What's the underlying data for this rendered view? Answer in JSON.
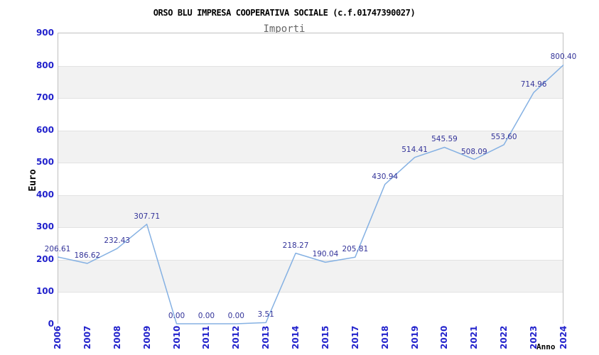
{
  "chart_data": {
    "type": "line",
    "title": "ORSO BLU IMPRESA COOPERATIVA SOCIALE (c.f.01747390027)",
    "subtitle": "Importi",
    "ylabel": "Euro",
    "xlabel": "Anno",
    "ylim": [
      0,
      900
    ],
    "yticks": [
      0,
      100,
      200,
      300,
      400,
      500,
      600,
      700,
      800,
      900
    ],
    "categories": [
      "2006",
      "2007",
      "2008",
      "2009",
      "2010",
      "2011",
      "2012",
      "2013",
      "2014",
      "2015",
      "2017",
      "2018",
      "2019",
      "2020",
      "2021",
      "2022",
      "2023",
      "2024"
    ],
    "series": [
      {
        "name": "Importi",
        "values": [
          206.61,
          186.62,
          232.43,
          307.71,
          0.0,
          0.0,
          0.0,
          3.51,
          218.27,
          190.04,
          205.81,
          430.94,
          514.41,
          545.59,
          508.09,
          553.6,
          714.96,
          800.4
        ]
      }
    ],
    "point_labels": [
      "206.61",
      "186.62",
      "232.43",
      "307.71",
      "0.00",
      "0.00",
      "0.00",
      "3.51",
      "218.27",
      "190.04",
      "205.81",
      "430.94",
      "514.41",
      "545.59",
      "508.09",
      "553.60",
      "714.96",
      "800.40"
    ],
    "legend": "none",
    "grid": "horizontal-bands",
    "colors": {
      "line": "#85b1e3",
      "point_label": "#333399",
      "tick_label": "#2222cc",
      "band_main": "#ffffff",
      "band_alt": "#f2f2f2",
      "gridline": "#e2e2e2",
      "plot_border": "#c0c0c0",
      "title": "#000000",
      "subtitle": "#666666"
    }
  }
}
